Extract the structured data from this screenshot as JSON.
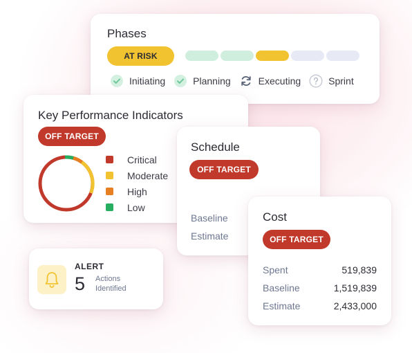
{
  "phases": {
    "title": "Phases",
    "status": "AT RISK",
    "segments": [
      {
        "color": "#cfeedd"
      },
      {
        "color": "#cfeedd"
      },
      {
        "color": "#f2c330"
      },
      {
        "color": "#e7e9f5"
      },
      {
        "color": "#e7e9f5"
      }
    ],
    "items": [
      {
        "label": "Initiating",
        "icon": "check-circle-icon"
      },
      {
        "label": "Planning",
        "icon": "check-circle-icon"
      },
      {
        "label": "Executing",
        "icon": "refresh-icon"
      },
      {
        "label": "Sprint",
        "icon": "question-circle-icon"
      }
    ]
  },
  "kpi": {
    "title": "Key Performance Indicators",
    "status": "OFF TARGET",
    "legend": [
      {
        "label": "Critical",
        "color": "#c0392b"
      },
      {
        "label": "Moderate",
        "color": "#f2c330"
      },
      {
        "label": "High",
        "color": "#e67e22"
      },
      {
        "label": "Low",
        "color": "#27ae60"
      }
    ]
  },
  "schedule": {
    "title": "Schedule",
    "status": "OFF TARGET",
    "rows": [
      "Baseline",
      "Estimate"
    ]
  },
  "cost": {
    "title": "Cost",
    "status": "OFF TARGET",
    "rows": [
      {
        "label": "Spent",
        "value": "519,839"
      },
      {
        "label": "Baseline",
        "value": "1,519,839"
      },
      {
        "label": "Estimate",
        "value": "2,433,000"
      }
    ]
  },
  "alert": {
    "label": "ALERT",
    "count": "5",
    "text": "Actions Identified",
    "icon": "bell-icon"
  },
  "colors": {
    "red": "#c0392b",
    "yellow": "#f2c330",
    "orange": "#e67e22",
    "green": "#27ae60",
    "muted": "#6e7791"
  }
}
